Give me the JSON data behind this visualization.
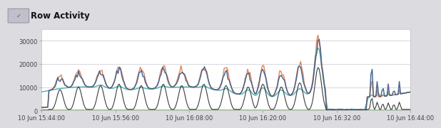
{
  "title": "Row Activity",
  "bg_outer": "#dcdce0",
  "bg_header": "#d4d4dc",
  "bg_plot": "#ffffff",
  "ylim": [
    0,
    35000
  ],
  "yticks": [
    0,
    10000,
    20000,
    30000
  ],
  "xlabel_times": [
    "10 Jun 15:44:00",
    "10 Jun 15:56:00",
    "10 Jun 16:08:00",
    "10 Jun 16:20:00",
    "10 Jun 16:32:00",
    "10 Jun 16:44:00"
  ],
  "color_teal": "#4db3b3",
  "color_orange": "#e08050",
  "color_darkblue": "#3a5c8a",
  "color_black": "#1a1a1a",
  "color_green_baseline": "#6aaa44"
}
